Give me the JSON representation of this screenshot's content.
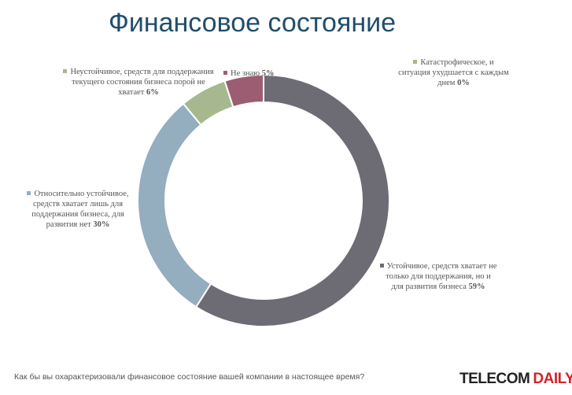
{
  "title": "Финансовое состояние",
  "question": "Как бы вы охарактеризовали финансовое состояние вашей компании в настоящее время?",
  "logo": {
    "part1": "TELECOM",
    "part2": "DAILY"
  },
  "chart_data": {
    "type": "pie",
    "donut": true,
    "title": "Финансовое состояние",
    "segments": [
      {
        "label": "Устойчивое, средств хватает не только для поддержания, но и для развития бизнеса",
        "value": 59,
        "pct_text": "59%",
        "color": "#6d6b74"
      },
      {
        "label": "Относительно устойчивое, средств хватает лишь для поддержания бизнеса, для развития нет",
        "value": 30,
        "pct_text": "30%",
        "color": "#94adbf"
      },
      {
        "label": "Неустойчивое, средств для поддержания текущего состояния бизнеса порой не хватает",
        "value": 6,
        "pct_text": "6%",
        "color": "#a7b88e"
      },
      {
        "label": "Не знаю",
        "value": 5,
        "pct_text": "5%",
        "color": "#9c5d72"
      },
      {
        "label": "Катастрофическое, и ситуация ухудшается с каждым днем",
        "value": 0,
        "pct_text": "0%",
        "color": "#a3b785"
      }
    ]
  }
}
